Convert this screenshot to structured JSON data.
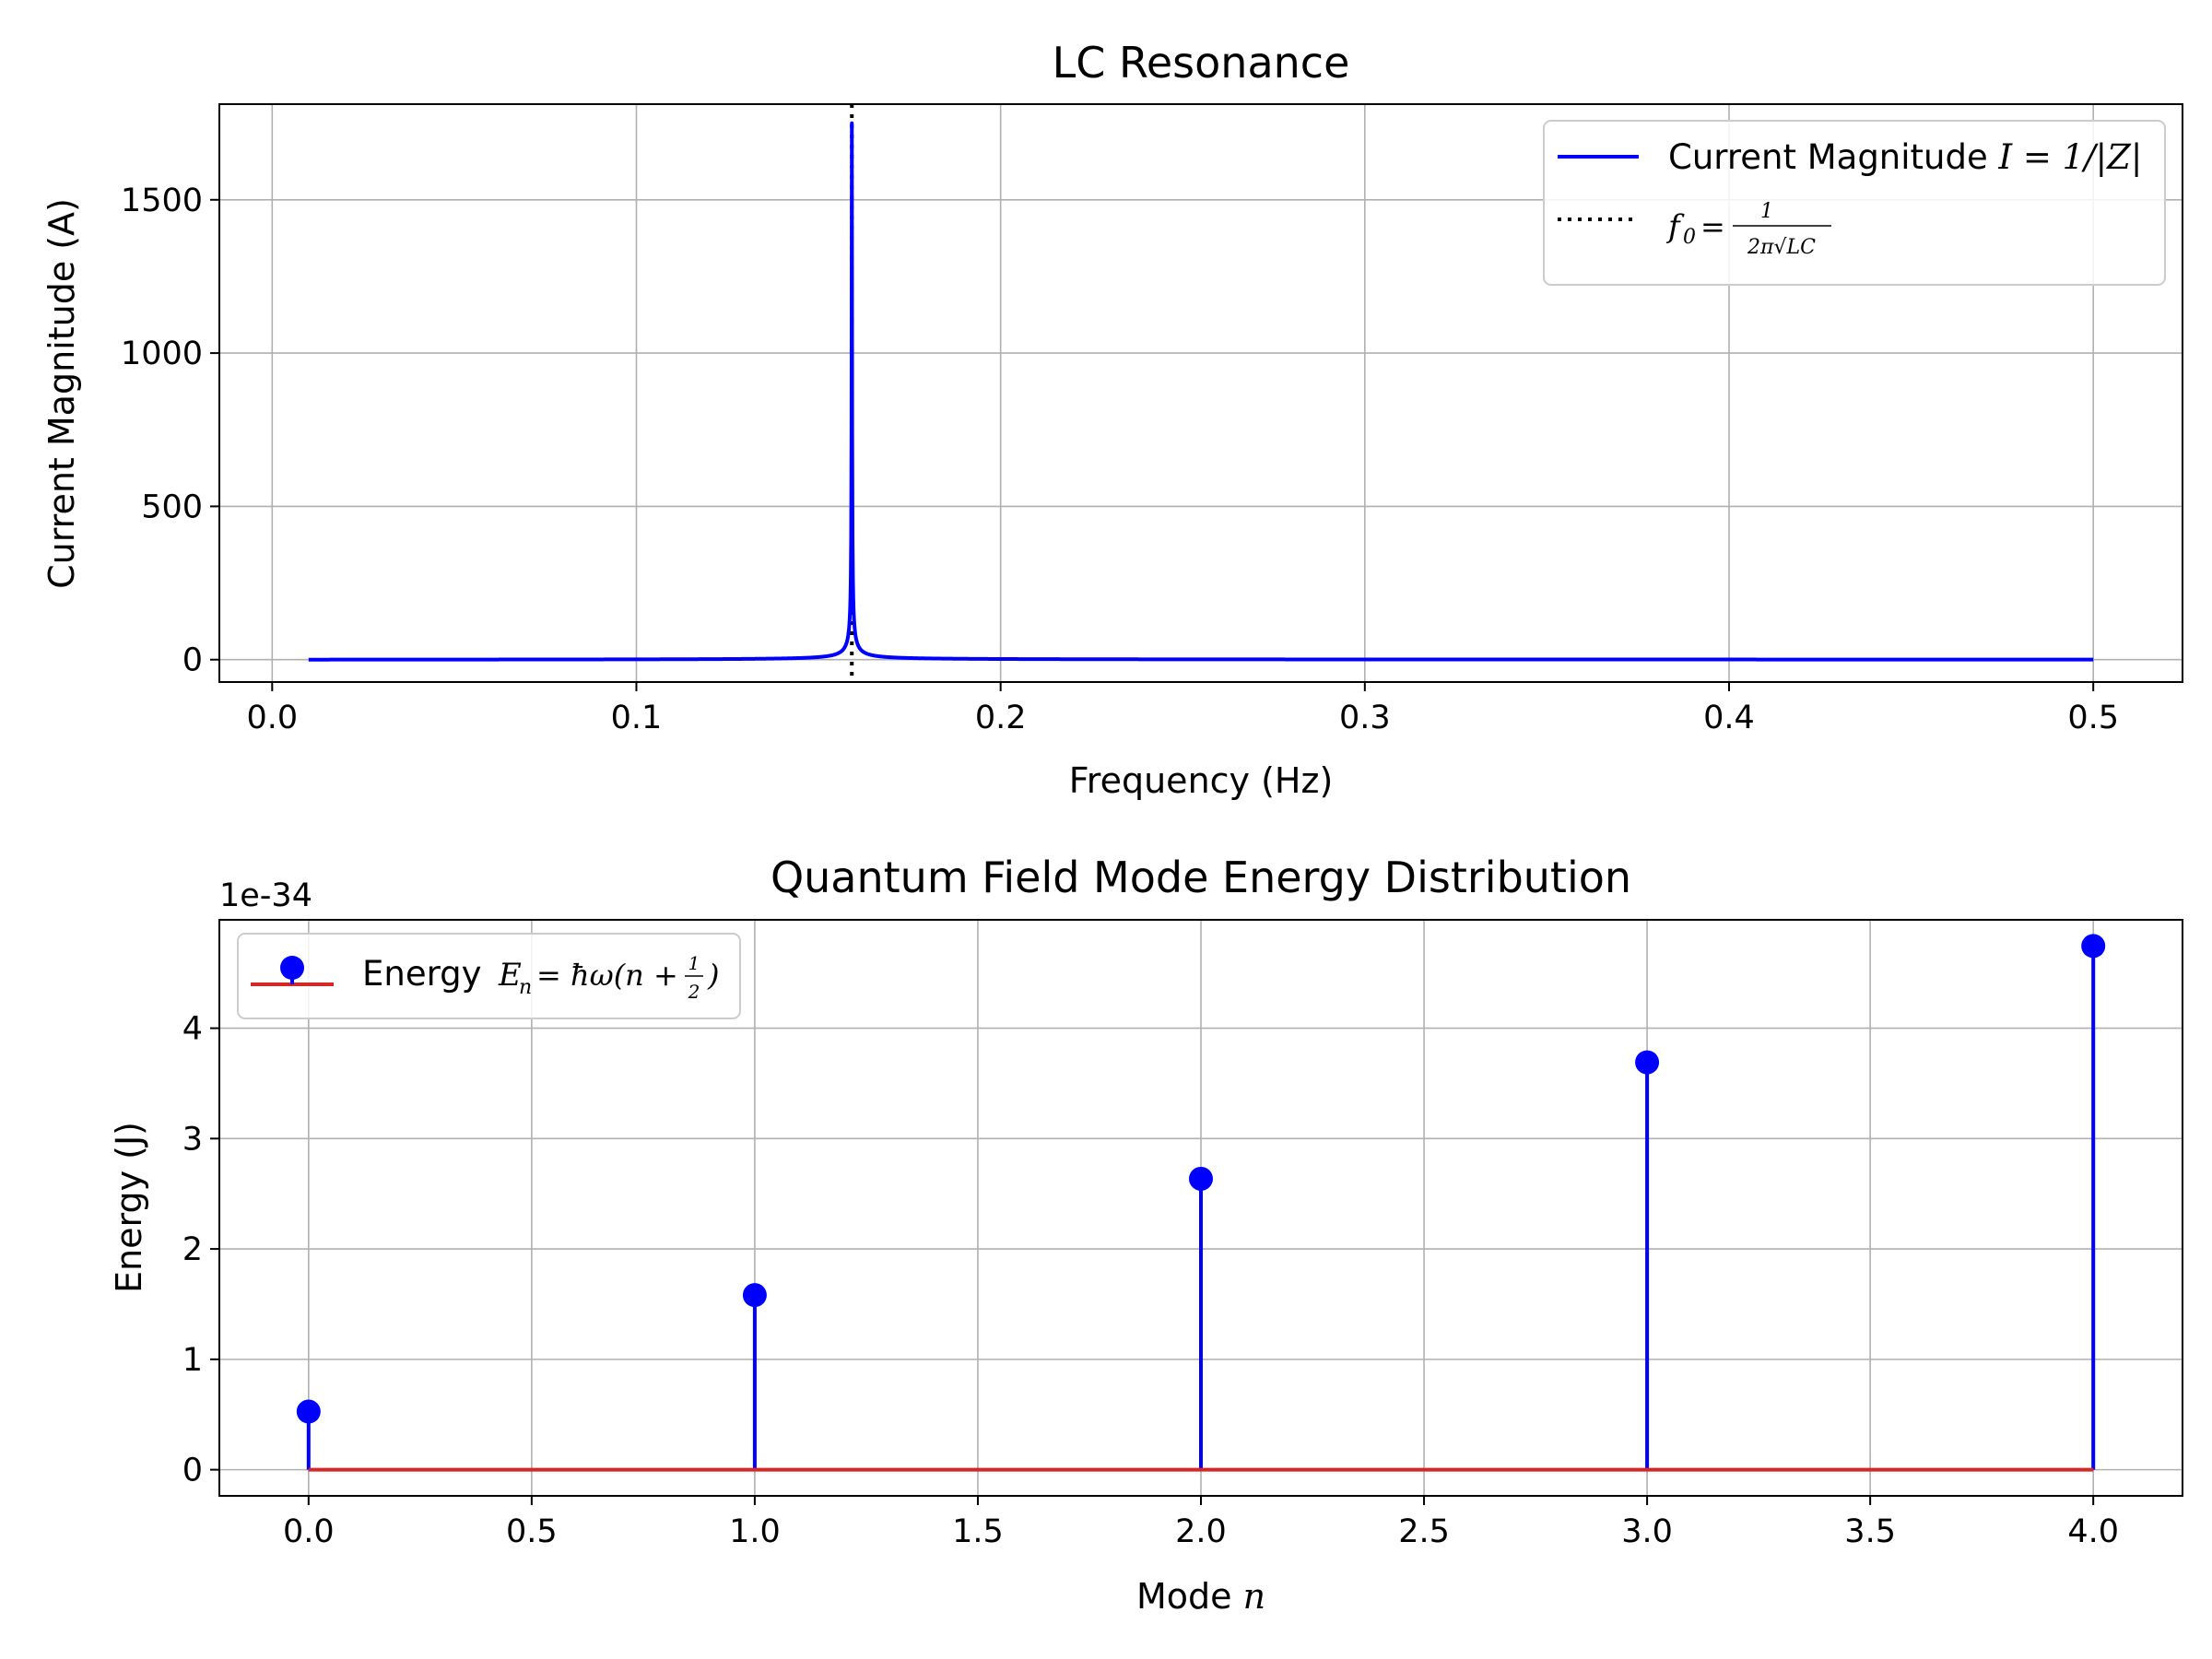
{
  "chart_data": [
    {
      "type": "line",
      "title": "LC Resonance",
      "xlabel": "Frequency (Hz)",
      "ylabel": "Current Magnitude (A)",
      "xlim": [
        -0.0145,
        0.5245
      ],
      "ylim": [
        -73,
        1812
      ],
      "xticks": [
        0.0,
        0.1,
        0.2,
        0.3,
        0.4,
        0.5
      ],
      "xtick_labels": [
        "0.0",
        "0.1",
        "0.2",
        "0.3",
        "0.4",
        "0.5"
      ],
      "yticks": [
        0,
        500,
        1000,
        1500
      ],
      "ytick_labels": [
        "0",
        "500",
        "1000",
        "1500"
      ],
      "grid": true,
      "legend_position": "top-right",
      "series": [
        {
          "name": "Current Magnitude I = 1/|Z|",
          "legend_prefix": "Current Magnitude ",
          "legend_math": "I = 1/|Z|",
          "color": "#0000ff",
          "style": "solid",
          "model": {
            "f_min": 0.01,
            "f_max": 0.5,
            "f0": 0.159155,
            "peak": 1750
          }
        },
        {
          "name": "f0 = 1/(2π√LC)",
          "legend_math": "f0 = 1/(2π√LC)",
          "legend_math_parts": {
            "lhs": "f",
            "sub": "0",
            "num": "1",
            "den": "2π√LC"
          },
          "color": "#000000",
          "style": "dotted",
          "x": 0.159155
        }
      ]
    },
    {
      "type": "stem",
      "title": "Quantum Field Mode Energy Distribution",
      "xlabel_prefix": "Mode ",
      "xlabel_math": "n",
      "ylabel": "Energy (J)",
      "offset_text": "1e-34",
      "x": [
        0,
        1,
        2,
        3,
        4
      ],
      "values": [
        0.527,
        1.582,
        2.636,
        3.691,
        4.745
      ],
      "value_scale": 1e-34,
      "xlim": [
        -0.2,
        4.2
      ],
      "ylim": [
        -0.237,
        4.982
      ],
      "xticks": [
        0.0,
        0.5,
        1.0,
        1.5,
        2.0,
        2.5,
        3.0,
        3.5,
        4.0
      ],
      "xtick_labels": [
        "0.0",
        "0.5",
        "1.0",
        "1.5",
        "2.0",
        "2.5",
        "3.0",
        "3.5",
        "4.0"
      ],
      "yticks": [
        0,
        1,
        2,
        3,
        4
      ],
      "ytick_labels": [
        "0",
        "1",
        "2",
        "3",
        "4"
      ],
      "grid": true,
      "legend_position": "top-left",
      "series": [
        {
          "name": "Energy E_n = ħω(n + 1/2)",
          "legend_prefix": "Energy ",
          "legend_math": "E_n = ħω(n + 1/2)",
          "legend_math_parts": {
            "lhs": "E",
            "sub": "n",
            "mid": "= ħω(n +",
            "num": "1",
            "den": "2",
            "close": ")"
          },
          "marker_color": "#0000ff",
          "stem_color": "#0000ff",
          "baseline_color": "#d62728"
        }
      ]
    }
  ]
}
